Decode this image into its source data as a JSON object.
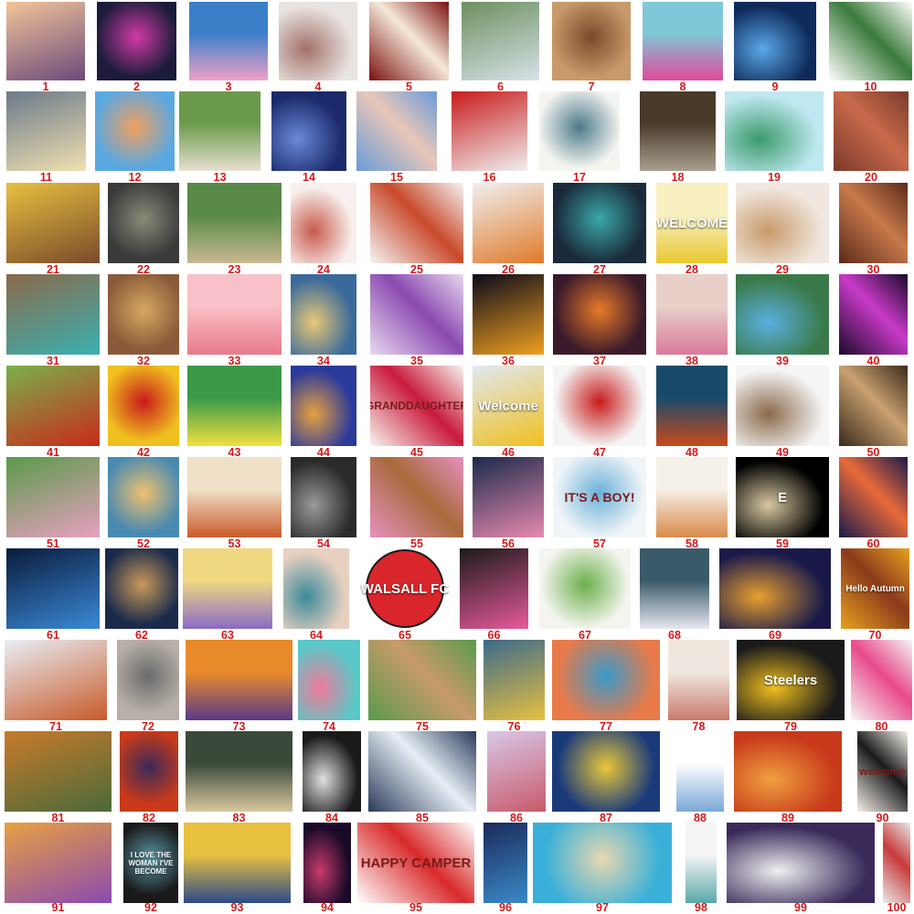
{
  "tiles": [
    {
      "n": "1",
      "subject": "butterfly-over-hand-at-sunset",
      "colors": [
        "#f3c59a",
        "#6b4a7a"
      ]
    },
    {
      "n": "2",
      "subject": "neon-rose-bouquet",
      "colors": [
        "#1a1c3a",
        "#d23aa6"
      ]
    },
    {
      "n": "3",
      "subject": "stitch-cartoon",
      "colors": [
        "#3a7fc8",
        "#f0a0c8"
      ]
    },
    {
      "n": "4",
      "subject": "snowy-village",
      "colors": [
        "#e8e4e0",
        "#a3716a"
      ]
    },
    {
      "n": "5",
      "subject": "red-flower-bouquet",
      "colors": [
        "#7a1010",
        "#f5e9d7"
      ]
    },
    {
      "n": "6",
      "subject": "waterfall-forest",
      "colors": [
        "#6b8f5e",
        "#d8e2e8"
      ]
    },
    {
      "n": "7",
      "subject": "witch-owl",
      "colors": [
        "#c89a6a",
        "#7a4a2a"
      ]
    },
    {
      "n": "8",
      "subject": "beach-flower",
      "colors": [
        "#7ec8d8",
        "#e04a9a"
      ]
    },
    {
      "n": "9",
      "subject": "howling-wolf-moon",
      "colors": [
        "#0e2a5a",
        "#5aa8e8"
      ]
    },
    {
      "n": "10",
      "subject": "christmas-wreath",
      "colors": [
        "#ffffff",
        "#3a7a3a"
      ]
    },
    {
      "n": "11",
      "subject": "lamp-lit-street",
      "colors": [
        "#6a7a8a",
        "#f0e0b0"
      ]
    },
    {
      "n": "12",
      "subject": "pebbles-heart",
      "colors": [
        "#5aa8e0",
        "#f0a060"
      ]
    },
    {
      "n": "13",
      "subject": "dogs-and-sheep",
      "colors": [
        "#6a9a4a",
        "#e8e0d0"
      ]
    },
    {
      "n": "14",
      "subject": "lighthouse-storm",
      "colors": [
        "#1a2a6a",
        "#6a8ad8"
      ]
    },
    {
      "n": "15",
      "subject": "girl-with-blue-flowers",
      "colors": [
        "#6a9ad8",
        "#e8c8b8"
      ]
    },
    {
      "n": "16",
      "subject": "santa-claus",
      "colors": [
        "#c81a1a",
        "#f0f0f0"
      ]
    },
    {
      "n": "17",
      "subject": "tractor-sunflowers",
      "colors": [
        "#f5f5f0",
        "#4a7a8a"
      ]
    },
    {
      "n": "18",
      "subject": "cowgirl",
      "colors": [
        "#4a3a2a",
        "#a8a090"
      ]
    },
    {
      "n": "19",
      "subject": "gnome-beach",
      "colors": [
        "#bfe8f0",
        "#3a9a6a"
      ]
    },
    {
      "n": "20",
      "subject": "family-embrace",
      "colors": [
        "#7a3a2a",
        "#c86a4a"
      ]
    },
    {
      "n": "21",
      "subject": "horse-sunflowers",
      "colors": [
        "#e8c040",
        "#7a4a2a"
      ]
    },
    {
      "n": "22",
      "subject": "buddha-face",
      "colors": [
        "#3a3a3a",
        "#8a8a7a"
      ]
    },
    {
      "n": "23",
      "subject": "old-couple-bench",
      "colors": [
        "#5a8a4a",
        "#c8b890"
      ]
    },
    {
      "n": "24",
      "subject": "mermaid-sketch",
      "colors": [
        "#f8f0ee",
        "#c85a4a"
      ]
    },
    {
      "n": "25",
      "subject": "red-panda-flowers",
      "colors": [
        "#f5f5f5",
        "#c84a2a"
      ]
    },
    {
      "n": "26",
      "subject": "foxes",
      "colors": [
        "#f0f0f0",
        "#e07a2a"
      ]
    },
    {
      "n": "27",
      "subject": "stained-glass-butterflies",
      "colors": [
        "#1a2a3a",
        "#3aa8a8"
      ]
    },
    {
      "n": "28",
      "subject": "welcome-gnome",
      "colors": [
        "#f8f0c0",
        "#e8c830"
      ]
    },
    {
      "n": "29",
      "subject": "princess-portrait",
      "colors": [
        "#f0e8e0",
        "#c89a6a"
      ]
    },
    {
      "n": "30",
      "subject": "woman-back",
      "colors": [
        "#5a2a1a",
        "#c87a4a"
      ]
    },
    {
      "n": "31",
      "subject": "turquoise-tree",
      "colors": [
        "#8a6a4a",
        "#3ab0b0"
      ]
    },
    {
      "n": "32",
      "subject": "stacked-books",
      "colors": [
        "#8a5a3a",
        "#d8a860"
      ]
    },
    {
      "n": "33",
      "subject": "pink-deer",
      "colors": [
        "#f8c0c8",
        "#e87a8a"
      ]
    },
    {
      "n": "34",
      "subject": "harbor-lighthouse",
      "colors": [
        "#3a6a9a",
        "#e8c878"
      ]
    },
    {
      "n": "35",
      "subject": "purple-flowers",
      "colors": [
        "#e8d8f0",
        "#8a4ab0"
      ]
    },
    {
      "n": "36",
      "subject": "golden-rose",
      "colors": [
        "#0a0a1a",
        "#f0a020"
      ]
    },
    {
      "n": "37",
      "subject": "tiger-flowers",
      "colors": [
        "#3a1a2a",
        "#e87a2a"
      ]
    },
    {
      "n": "38",
      "subject": "pink-peonies",
      "colors": [
        "#e8d0c8",
        "#d87a9a"
      ]
    },
    {
      "n": "39",
      "subject": "lake-cabin",
      "colors": [
        "#3a7a4a",
        "#5ab0e0"
      ]
    },
    {
      "n": "40",
      "subject": "enchanted-rose-dome",
      "colors": [
        "#1a0a2a",
        "#c83ac8"
      ]
    },
    {
      "n": "41",
      "subject": "apple-basket-birds",
      "colors": [
        "#7ab04a",
        "#c82a1a"
      ]
    },
    {
      "n": "42",
      "subject": "ladybugs-sunflowers",
      "colors": [
        "#f0c020",
        "#c81a1a"
      ]
    },
    {
      "n": "43",
      "subject": "yellow-butterflies",
      "colors": [
        "#3a9a4a",
        "#f0e040"
      ]
    },
    {
      "n": "44",
      "subject": "swans-heart",
      "colors": [
        "#2a3a9a",
        "#e8a040"
      ]
    },
    {
      "n": "45",
      "subject": "granddaughter-art",
      "colors": [
        "#f8f5f0",
        "#c81a3a"
      ]
    },
    {
      "n": "46",
      "subject": "welcome-bee-gnome",
      "colors": [
        "#e0e8f0",
        "#f0c020"
      ]
    },
    {
      "n": "47",
      "subject": "poinsettia-wreath",
      "colors": [
        "#f5f5f5",
        "#c81a1a"
      ]
    },
    {
      "n": "48",
      "subject": "red-haired-woman",
      "colors": [
        "#1a4a6a",
        "#c84a1a"
      ]
    },
    {
      "n": "49",
      "subject": "welcome-basset-dog",
      "colors": [
        "#f5f5f5",
        "#8a6a4a"
      ]
    },
    {
      "n": "50",
      "subject": "native-woman-portrait",
      "colors": [
        "#3a2a1a",
        "#c8a070"
      ]
    },
    {
      "n": "51",
      "subject": "cottage-garden",
      "colors": [
        "#5a9a4a",
        "#e8a0c0"
      ]
    },
    {
      "n": "52",
      "subject": "riverside-cottage",
      "colors": [
        "#4a8ab0",
        "#f0c070"
      ]
    },
    {
      "n": "53",
      "subject": "vintage-kitchen",
      "colors": [
        "#f0e0c8",
        "#c85a2a"
      ]
    },
    {
      "n": "54",
      "subject": "grey-wolf",
      "colors": [
        "#2a2a2a",
        "#9a9a9a"
      ]
    },
    {
      "n": "55",
      "subject": "puppy-with-flower",
      "colors": [
        "#e890c0",
        "#a86a3a"
      ]
    },
    {
      "n": "56",
      "subject": "birds-in-bulb",
      "colors": [
        "#1a2a4a",
        "#e88ab0"
      ]
    },
    {
      "n": "57",
      "subject": "its-a-boy-giraffe",
      "colors": [
        "#f0f5f8",
        "#6ab0d8"
      ]
    },
    {
      "n": "58",
      "subject": "golden-tiger-sketch",
      "colors": [
        "#f5f0e8",
        "#d88a4a"
      ]
    },
    {
      "n": "59",
      "subject": "letter-e-roses",
      "colors": [
        "#000000",
        "#d8c8a0"
      ]
    },
    {
      "n": "60",
      "subject": "stained-glass-woman",
      "colors": [
        "#1a1a4a",
        "#e86a3a"
      ]
    },
    {
      "n": "61",
      "subject": "wolf-dreamcatcher",
      "colors": [
        "#0a1a3a",
        "#3a8ad8"
      ]
    },
    {
      "n": "62",
      "subject": "nativity-scene",
      "colors": [
        "#1a2a4a",
        "#c89a5a"
      ]
    },
    {
      "n": "63",
      "subject": "stained-glass-bow",
      "colors": [
        "#f0d880",
        "#8a6ac8"
      ]
    },
    {
      "n": "64",
      "subject": "heart-sand-bubble",
      "colors": [
        "#e8d0c0",
        "#3a8a9a"
      ]
    },
    {
      "n": "65",
      "subject": "walsall-fc-badge",
      "colors": [
        "#ffffff",
        "#d8262c"
      ]
    },
    {
      "n": "66",
      "subject": "black-white-cat-flowers",
      "colors": [
        "#1a1a1a",
        "#e85a9a"
      ]
    },
    {
      "n": "67",
      "subject": "frog-sunflowers",
      "colors": [
        "#f5f5f0",
        "#6ab04a"
      ]
    },
    {
      "n": "68",
      "subject": "fluffy-cats",
      "colors": [
        "#3a5a6a",
        "#e8e8f0"
      ]
    },
    {
      "n": "69",
      "subject": "tower-bridge-fireworks",
      "colors": [
        "#1a1a4a",
        "#e8a030"
      ]
    },
    {
      "n": "70",
      "subject": "hello-autumn",
      "colors": [
        "#e8a020",
        "#8a3a1a"
      ]
    },
    {
      "n": "71",
      "subject": "rusty-tractor-snow",
      "colors": [
        "#e8eef5",
        "#c85a2a"
      ]
    },
    {
      "n": "72",
      "subject": "rainy-street-sketch",
      "colors": [
        "#b8b0a8",
        "#6a6a6a"
      ]
    },
    {
      "n": "73",
      "subject": "autumn-fairy",
      "colors": [
        "#e88a2a",
        "#5a3a8a"
      ]
    },
    {
      "n": "74",
      "subject": "flamingos-heart",
      "colors": [
        "#5ac8c8",
        "#f07a9a"
      ]
    },
    {
      "n": "75",
      "subject": "tabby-cat-garden",
      "colors": [
        "#5a9a4a",
        "#c89a6a"
      ]
    },
    {
      "n": "76",
      "subject": "colorful-cat-eyes",
      "colors": [
        "#3a6a8a",
        "#e8c040"
      ]
    },
    {
      "n": "77",
      "subject": "beach-sunset-chairs",
      "colors": [
        "#e87a4a",
        "#3a9ac8"
      ]
    },
    {
      "n": "78",
      "subject": "fairy-sketch",
      "colors": [
        "#f0e8e0",
        "#c87a6a"
      ]
    },
    {
      "n": "79",
      "subject": "steelers-logo",
      "colors": [
        "#1a1a1a",
        "#f0c020"
      ]
    },
    {
      "n": "80",
      "subject": "rainbow-tree",
      "colors": [
        "#f5f5f5",
        "#e84a8a"
      ]
    },
    {
      "n": "81",
      "subject": "autumn-cottage",
      "colors": [
        "#c87a2a",
        "#4a6a3a"
      ]
    },
    {
      "n": "82",
      "subject": "couple-umbrella-rain",
      "colors": [
        "#c83a1a",
        "#3a2a5a"
      ]
    },
    {
      "n": "83",
      "subject": "eagles-landscape",
      "colors": [
        "#3a4a3a",
        "#d8c8a0"
      ]
    },
    {
      "n": "84",
      "subject": "white-horse-sketch",
      "colors": [
        "#1a1a1a",
        "#e0e0e0"
      ]
    },
    {
      "n": "85",
      "subject": "mountain-lake",
      "colors": [
        "#2a3a5a",
        "#e8eef5"
      ]
    },
    {
      "n": "86",
      "subject": "fairytale-castle",
      "colors": [
        "#d8c8e8",
        "#c85a6a"
      ]
    },
    {
      "n": "87",
      "subject": "starry-night",
      "colors": [
        "#1a3a7a",
        "#e8c83a"
      ]
    },
    {
      "n": "88",
      "subject": "sunbonnet-girl",
      "colors": [
        "#ffffff",
        "#7aa8d8"
      ]
    },
    {
      "n": "89",
      "subject": "hands-heart-sunset",
      "colors": [
        "#c83a1a",
        "#f0a040"
      ]
    },
    {
      "n": "90",
      "subject": "welcome-skull-raven",
      "colors": [
        "#f5f0e8",
        "#1a1a1a"
      ]
    },
    {
      "n": "91",
      "subject": "desert-cactus-sunset",
      "colors": [
        "#e8a040",
        "#8a4ab0"
      ]
    },
    {
      "n": "92",
      "subject": "woman-ive-become-sign",
      "colors": [
        "#1a1a1a",
        "#5a9aa8"
      ]
    },
    {
      "n": "93",
      "subject": "starry-swirls",
      "colors": [
        "#e8c040",
        "#2a4a8a"
      ]
    },
    {
      "n": "94",
      "subject": "moon-woman",
      "colors": [
        "#1a0a2a",
        "#c83a6a"
      ]
    },
    {
      "n": "95",
      "subject": "happy-camper",
      "colors": [
        "#ffffff",
        "#d82a2a"
      ]
    },
    {
      "n": "96",
      "subject": "blue-dress-woman",
      "colors": [
        "#1a2a5a",
        "#3a8ac8"
      ]
    },
    {
      "n": "97",
      "subject": "tropical-beach",
      "colors": [
        "#3ab0d8",
        "#e8d8b0"
      ]
    },
    {
      "n": "98",
      "subject": "victorian-lady",
      "colors": [
        "#f5f5f5",
        "#5aa8a8"
      ]
    },
    {
      "n": "99",
      "subject": "cat-on-books",
      "colors": [
        "#3a2a5a",
        "#f0f0f0"
      ]
    },
    {
      "n": "100",
      "subject": "stained-glass-panel",
      "colors": [
        "#e8e8e8",
        "#c83a3a"
      ]
    }
  ],
  "captions": {
    "28": "WELCOME",
    "45": "GRANDDAUGHTER",
    "46": "Welcome",
    "57": "IT'S A BOY!",
    "59": "E",
    "65": "WALSALL FC",
    "70": "Hello Autumn",
    "79": "Steelers",
    "90": "welcome",
    "92": "I LOVE THE WOMAN I'VE BECOME",
    "95": "HAPPY CAMPER"
  }
}
